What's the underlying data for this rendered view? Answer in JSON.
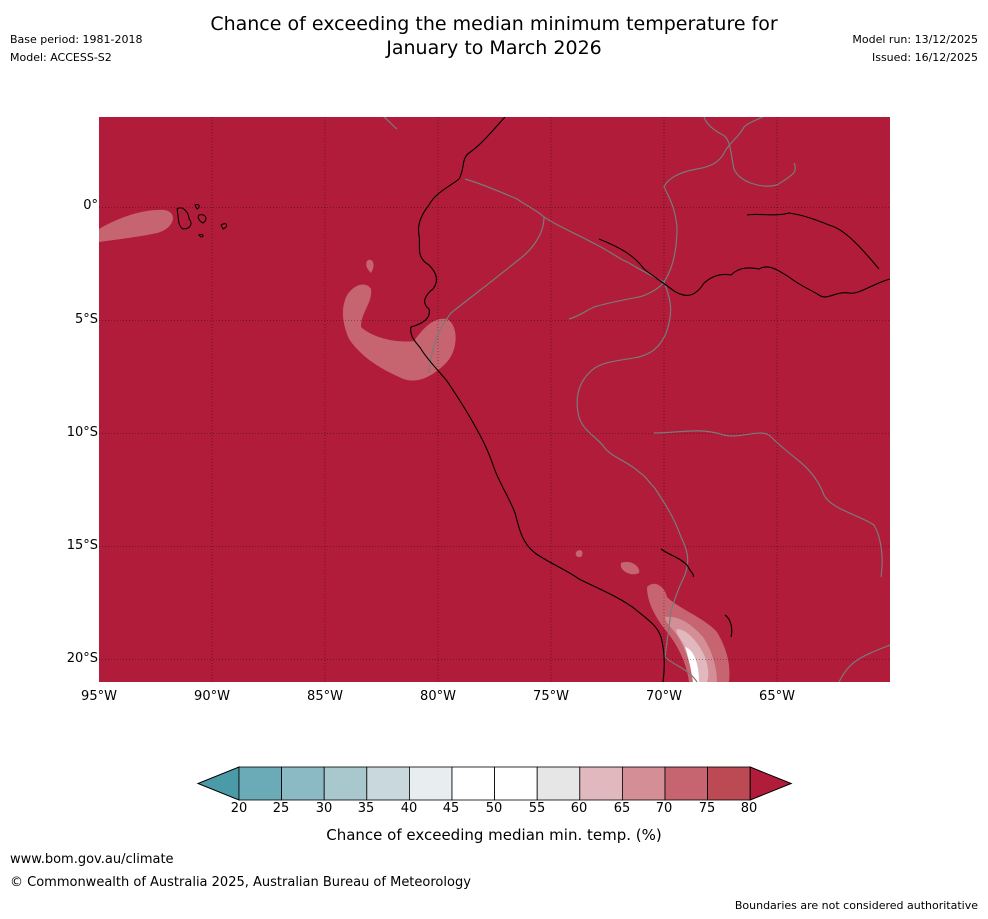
{
  "header": {
    "title_line1": "Chance of exceeding the median minimum temperature for",
    "title_line2": "January to March 2026",
    "base_period": "Base period: 1981-2018",
    "model": "Model: ACCESS-S2",
    "model_run": "Model run: 13/12/2025",
    "issued": "Issued: 16/12/2025"
  },
  "map": {
    "region": "Western South America",
    "lon_range": [
      -95,
      -60
    ],
    "lat_range": [
      -21,
      4
    ],
    "lat_ticks": [
      "0°",
      "5°S",
      "10°S",
      "15°S",
      "20°S"
    ],
    "lon_ticks": [
      "95°W",
      "90°W",
      "85°W",
      "80°W",
      "75°W",
      "70°W",
      "65°W"
    ],
    "background_category": "80+",
    "grid": true
  },
  "colorbar": {
    "ticks": [
      "20",
      "25",
      "30",
      "35",
      "40",
      "45",
      "50",
      "55",
      "60",
      "65",
      "70",
      "75",
      "80"
    ],
    "colors": [
      "#4a9aa8",
      "#6aabb7",
      "#8bbac4",
      "#a9c8ce",
      "#c8d8dc",
      "#e8eef0",
      "#ffffff",
      "#ffffff",
      "#e6e6e6",
      "#e0b8bd",
      "#d48e96",
      "#c66570",
      "#bb4a55",
      "#b01c39"
    ],
    "label": "Chance of exceeding median min. temp. (%)"
  },
  "footer": {
    "url": "www.bom.gov.au/climate",
    "copyright": "© Commonwealth of Australia 2025, Australian Bureau of Meteorology",
    "disclaimer": "Boundaries are not considered authoritative"
  }
}
